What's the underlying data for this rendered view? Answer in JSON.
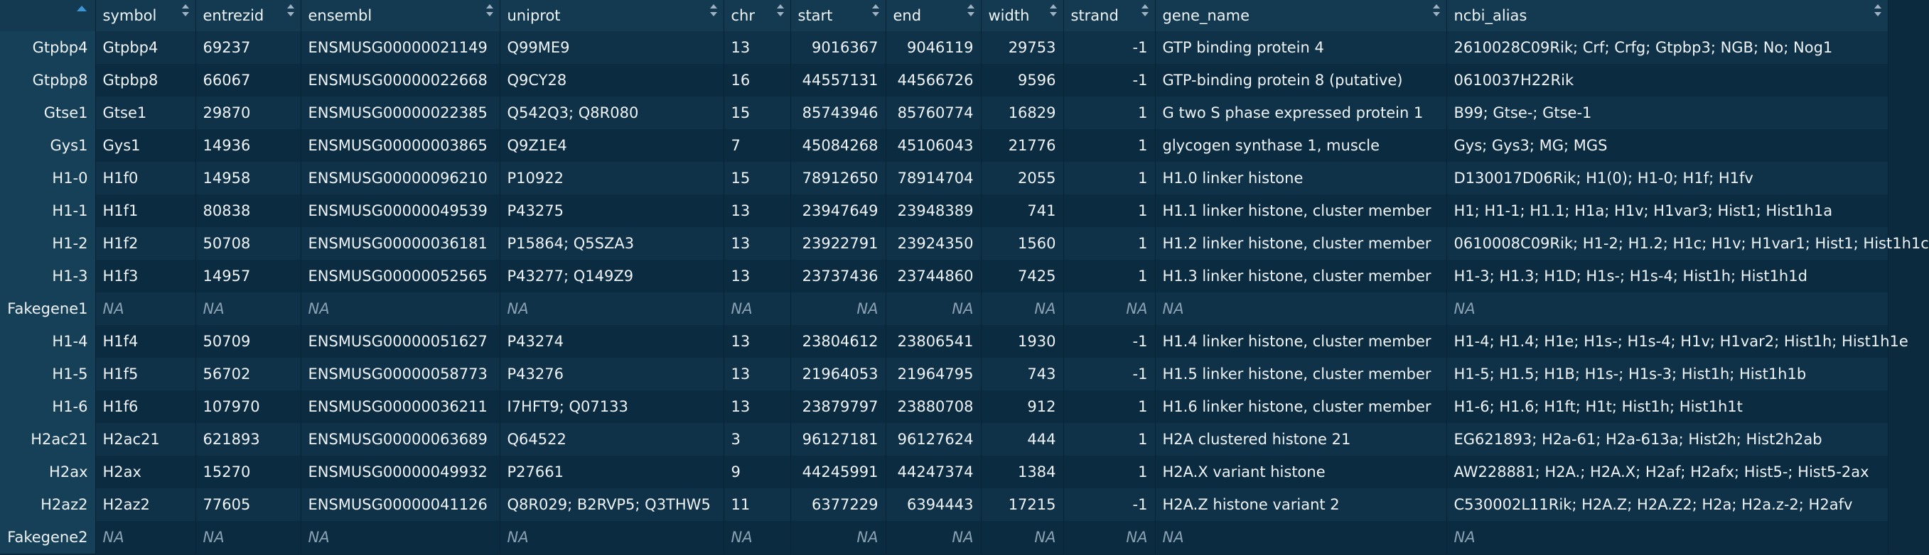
{
  "columns": [
    {
      "key": "row",
      "label": ""
    },
    {
      "key": "symbol",
      "label": "symbol"
    },
    {
      "key": "entrezid",
      "label": "entrezid"
    },
    {
      "key": "ensembl",
      "label": "ensembl"
    },
    {
      "key": "uniprot",
      "label": "uniprot"
    },
    {
      "key": "chr",
      "label": "chr"
    },
    {
      "key": "start",
      "label": "start"
    },
    {
      "key": "end",
      "label": "end"
    },
    {
      "key": "width",
      "label": "width"
    },
    {
      "key": "strand",
      "label": "strand"
    },
    {
      "key": "gene_name",
      "label": "gene_name"
    },
    {
      "key": "ncbi_alias",
      "label": "ncbi_alias"
    }
  ],
  "numeric_columns": [
    "start",
    "end",
    "width",
    "strand"
  ],
  "na_text": "NA",
  "rows": [
    [
      "Gtpbp4",
      "Gtpbp4",
      "69237",
      "ENSMUSG00000021149",
      "Q99ME9",
      "13",
      "9016367",
      "9046119",
      "29753",
      "-1",
      "GTP binding protein 4",
      "2610028C09Rik; Crf; Crfg; Gtpbp3; NGB; No; Nog1"
    ],
    [
      "Gtpbp8",
      "Gtpbp8",
      "66067",
      "ENSMUSG00000022668",
      "Q9CY28",
      "16",
      "44557131",
      "44566726",
      "9596",
      "-1",
      "GTP-binding protein 8 (putative)",
      "0610037H22Rik"
    ],
    [
      "Gtse1",
      "Gtse1",
      "29870",
      "ENSMUSG00000022385",
      "Q542Q3; Q8R080",
      "15",
      "85743946",
      "85760774",
      "16829",
      "1",
      "G two S phase expressed protein 1",
      "B99; Gtse-; Gtse-1"
    ],
    [
      "Gys1",
      "Gys1",
      "14936",
      "ENSMUSG00000003865",
      "Q9Z1E4",
      "7",
      "45084268",
      "45106043",
      "21776",
      "1",
      "glycogen synthase 1, muscle",
      "Gys; Gys3; MG; MGS"
    ],
    [
      "H1-0",
      "H1f0",
      "14958",
      "ENSMUSG00000096210",
      "P10922",
      "15",
      "78912650",
      "78914704",
      "2055",
      "1",
      "H1.0 linker histone",
      "D130017D06Rik; H1(0); H1-0; H1f; H1fv"
    ],
    [
      "H1-1",
      "H1f1",
      "80838",
      "ENSMUSG00000049539",
      "P43275",
      "13",
      "23947649",
      "23948389",
      "741",
      "1",
      "H1.1 linker histone, cluster member",
      "H1; H1-1; H1.1; H1a; H1v; H1var3; Hist1; Hist1h1a"
    ],
    [
      "H1-2",
      "H1f2",
      "50708",
      "ENSMUSG00000036181",
      "P15864; Q5SZA3",
      "13",
      "23922791",
      "23924350",
      "1560",
      "1",
      "H1.2 linker histone, cluster member",
      "0610008C09Rik; H1-2; H1.2; H1c; H1v; H1var1; Hist1; Hist1h1c"
    ],
    [
      "H1-3",
      "H1f3",
      "14957",
      "ENSMUSG00000052565",
      "P43277; Q149Z9",
      "13",
      "23737436",
      "23744860",
      "7425",
      "1",
      "H1.3 linker histone, cluster member",
      "H1-3; H1.3; H1D; H1s-; H1s-4; Hist1h; Hist1h1d"
    ],
    [
      "Fakegene1",
      "NA",
      "NA",
      "NA",
      "NA",
      "NA",
      "NA",
      "NA",
      "NA",
      "NA",
      "NA",
      "NA"
    ],
    [
      "H1-4",
      "H1f4",
      "50709",
      "ENSMUSG00000051627",
      "P43274",
      "13",
      "23804612",
      "23806541",
      "1930",
      "-1",
      "H1.4 linker histone, cluster member",
      "H1-4; H1.4; H1e; H1s-; H1s-4; H1v; H1var2; Hist1h; Hist1h1e"
    ],
    [
      "H1-5",
      "H1f5",
      "56702",
      "ENSMUSG00000058773",
      "P43276",
      "13",
      "21964053",
      "21964795",
      "743",
      "-1",
      "H1.5 linker histone, cluster member",
      "H1-5; H1.5; H1B; H1s-; H1s-3; Hist1h; Hist1h1b"
    ],
    [
      "H1-6",
      "H1f6",
      "107970",
      "ENSMUSG00000036211",
      "I7HFT9; Q07133",
      "13",
      "23879797",
      "23880708",
      "912",
      "1",
      "H1.6 linker histone, cluster member",
      "H1-6; H1.6; H1ft; H1t; Hist1h; Hist1h1t"
    ],
    [
      "H2ac21",
      "H2ac21",
      "621893",
      "ENSMUSG00000063689",
      "Q64522",
      "3",
      "96127181",
      "96127624",
      "444",
      "1",
      "H2A clustered histone 21",
      "EG621893; H2a-61; H2a-613a; Hist2h; Hist2h2ab"
    ],
    [
      "H2ax",
      "H2ax",
      "15270",
      "ENSMUSG00000049932",
      "P27661",
      "9",
      "44245991",
      "44247374",
      "1384",
      "1",
      "H2A.X variant histone",
      "AW228881; H2A.; H2A.X; H2af; H2afx; Hist5-; Hist5-2ax"
    ],
    [
      "H2az2",
      "H2az2",
      "77605",
      "ENSMUSG00000041126",
      "Q8R029; B2RVP5; Q3THW5",
      "11",
      "6377229",
      "6394443",
      "17215",
      "-1",
      "H2A.Z histone variant 2",
      "C530002L11Rik; H2A.Z; H2A.Z2; H2a; H2a.z-2; H2afv"
    ],
    [
      "Fakegene2",
      "NA",
      "NA",
      "NA",
      "NA",
      "NA",
      "NA",
      "NA",
      "NA",
      "NA",
      "NA",
      "NA"
    ]
  ]
}
